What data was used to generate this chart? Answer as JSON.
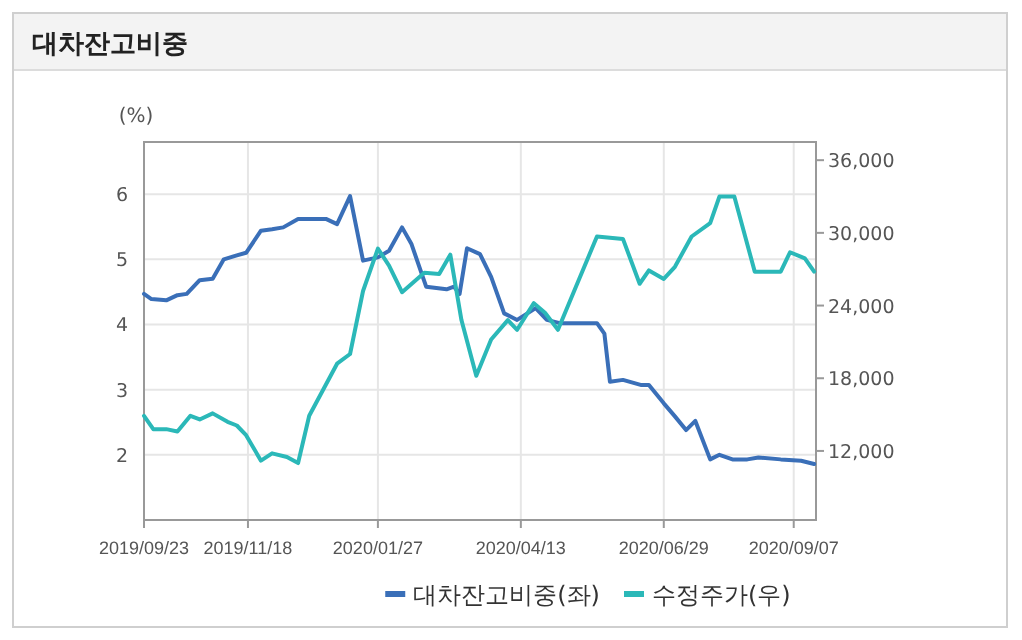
{
  "chart_data": {
    "type": "line",
    "title": "대차잔고비중",
    "ylabel": "(%)",
    "ylim": [
      1,
      6.8
    ],
    "yticks": [
      2,
      3,
      4,
      5,
      6
    ],
    "y2lim": [
      6300,
      37500
    ],
    "y2ticks": [
      {
        "value": 12000,
        "label": "12,000"
      },
      {
        "value": 18000,
        "label": "18,000"
      },
      {
        "value": 24000,
        "label": "24,000"
      },
      {
        "value": 30000,
        "label": "30,000"
      },
      {
        "value": 36000,
        "label": "36,000"
      }
    ],
    "xlim": [
      "2019-09-23",
      "2020-09-19"
    ],
    "xticks": [
      {
        "value": "2019-09-23",
        "label": "2019/09/23"
      },
      {
        "value": "2019-11-18",
        "label": "2019/11/18"
      },
      {
        "value": "2020-01-27",
        "label": "2020/01/27"
      },
      {
        "value": "2020-04-13",
        "label": "2020/04/13"
      },
      {
        "value": "2020-06-29",
        "label": "2020/06/29"
      },
      {
        "value": "2020-09-07",
        "label": "2020/09/07"
      }
    ],
    "grid": true,
    "legend": "bottom",
    "marker": "none",
    "line_style": "solid",
    "series": [
      {
        "name": "대차잔고비중(좌)",
        "color": "#3a6fb8",
        "x": [
          "2019-09-23",
          "2019-09-27",
          "2019-10-05",
          "2019-10-11",
          "2019-10-16",
          "2019-10-23",
          "2019-10-30",
          "2019-11-05",
          "2019-11-12",
          "2019-11-17",
          "2019-11-25",
          "2019-12-01",
          "2019-12-07",
          "2019-12-15",
          "2019-12-30",
          "2020-01-05",
          "2020-01-12",
          "2020-01-19",
          "2020-01-27",
          "2020-02-02",
          "2020-02-09",
          "2020-02-14",
          "2020-02-22",
          "2020-03-04",
          "2020-03-08",
          "2020-03-11",
          "2020-03-15",
          "2020-03-22",
          "2020-03-28",
          "2020-04-04",
          "2020-04-11",
          "2020-04-21",
          "2020-04-27",
          "2020-05-04",
          "2020-05-24",
          "2020-05-28",
          "2020-05-31",
          "2020-06-07",
          "2020-06-17",
          "2020-06-21",
          "2020-06-29",
          "2020-07-05",
          "2020-07-11",
          "2020-07-16",
          "2020-07-24",
          "2020-07-29",
          "2020-08-05",
          "2020-08-13",
          "2020-08-19",
          "2020-08-31",
          "2020-09-11",
          "2020-09-18"
        ],
        "values": [
          4.47,
          4.39,
          4.37,
          4.45,
          4.47,
          4.68,
          4.7,
          5.0,
          5.06,
          5.1,
          5.44,
          5.46,
          5.49,
          5.62,
          5.62,
          5.54,
          5.97,
          4.98,
          5.03,
          5.13,
          5.49,
          5.24,
          4.58,
          4.54,
          4.58,
          4.47,
          5.17,
          5.08,
          4.73,
          4.17,
          4.07,
          4.25,
          4.07,
          4.02,
          4.02,
          3.86,
          3.12,
          3.15,
          3.07,
          3.07,
          2.79,
          2.59,
          2.38,
          2.52,
          1.93,
          2.0,
          1.93,
          1.93,
          1.96,
          1.93,
          1.91,
          1.86
        ]
      },
      {
        "name": "수정주가(우)",
        "color": "#2bb8b8",
        "axis": "y2",
        "x": [
          "2019-09-23",
          "2019-09-28",
          "2019-10-05",
          "2019-10-11",
          "2019-10-18",
          "2019-10-23",
          "2019-10-30",
          "2019-11-07",
          "2019-11-12",
          "2019-11-17",
          "2019-11-25",
          "2019-12-01",
          "2019-12-09",
          "2019-12-15",
          "2019-12-21",
          "2020-01-05",
          "2020-01-12",
          "2020-01-19",
          "2020-01-27",
          "2020-02-02",
          "2020-02-09",
          "2020-02-21",
          "2020-02-29",
          "2020-03-06",
          "2020-03-12",
          "2020-03-20",
          "2020-03-28",
          "2020-04-06",
          "2020-04-11",
          "2020-04-20",
          "2020-04-26",
          "2020-05-03",
          "2020-05-12",
          "2020-05-24",
          "2020-06-07",
          "2020-06-16",
          "2020-06-21",
          "2020-06-29",
          "2020-07-05",
          "2020-07-14",
          "2020-07-24",
          "2020-07-29",
          "2020-08-06",
          "2020-08-17",
          "2020-08-31",
          "2020-09-05",
          "2020-09-13",
          "2020-09-18"
        ],
        "values": [
          14900,
          13800,
          13800,
          13600,
          14900,
          14600,
          15100,
          14400,
          14100,
          13300,
          11200,
          11800,
          11500,
          11000,
          14900,
          19200,
          20000,
          25200,
          28700,
          27300,
          25100,
          26700,
          26600,
          28200,
          22800,
          18200,
          21200,
          22800,
          22000,
          24200,
          23400,
          22000,
          25300,
          29700,
          29500,
          25800,
          26900,
          26200,
          27200,
          29700,
          30800,
          33000,
          33000,
          26800,
          26800,
          28400,
          27900,
          26800
        ]
      }
    ]
  }
}
